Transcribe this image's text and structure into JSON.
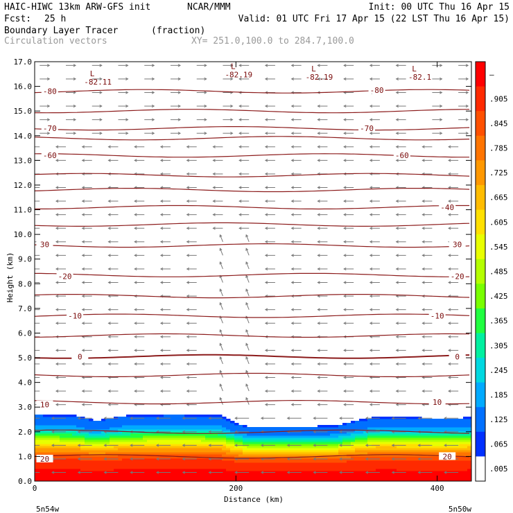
{
  "header": {
    "model": "HAIC-HIWC 13km ARW-GFS init",
    "org": "NCAR/MMM",
    "init": "Init: 00 UTC Thu 16 Apr 15",
    "fcst_label": "Fcst:",
    "fcst_value": "25 h",
    "valid": "Valid: 01 UTC Fri 17 Apr 15 (22 LST Thu 16 Apr 15)",
    "field": "Boundary Layer Tracer",
    "units": "(fraction)",
    "vectors": "Circulation vectors",
    "xy": "XY= 251.0,100.0 to 284.7,100.0"
  },
  "chart_data": {
    "type": "cross-section",
    "xlabel": "Distance (km)",
    "ylabel": "Height (km)",
    "xlim": [
      0,
      434
    ],
    "ylim": [
      0,
      17
    ],
    "x_ticks": [
      0,
      200,
      400
    ],
    "y_ticks": [
      0,
      1,
      2,
      3,
      4,
      5,
      6,
      7,
      8,
      9,
      10,
      11,
      12,
      13,
      14,
      15,
      16,
      17
    ],
    "x_end_labels": [
      "5n54w",
      "5n50w"
    ],
    "colorbar": {
      "labels": [
        "–",
        ".905",
        ".845",
        ".785",
        ".725",
        ".665",
        ".605",
        ".545",
        ".485",
        ".425",
        ".365",
        ".305",
        ".245",
        ".185",
        ".125",
        ".065",
        ".005"
      ],
      "colors": [
        "#ff0000",
        "#ff2a00",
        "#ff5000",
        "#ff7400",
        "#ff9800",
        "#ffbc00",
        "#ffe000",
        "#e8ff00",
        "#b4ff00",
        "#78ff00",
        "#20ff40",
        "#00f0a0",
        "#00d8e0",
        "#00aaff",
        "#0070ff",
        "#0030ff",
        "#ffffff"
      ]
    },
    "tracer_top_km": [
      [
        0,
        2.7
      ],
      [
        40,
        2.65
      ],
      [
        60,
        2.45
      ],
      [
        90,
        2.65
      ],
      [
        140,
        2.7
      ],
      [
        185,
        2.65
      ],
      [
        200,
        2.35
      ],
      [
        215,
        2.2
      ],
      [
        260,
        2.2
      ],
      [
        300,
        2.25
      ],
      [
        320,
        2.45
      ],
      [
        340,
        2.6
      ],
      [
        400,
        2.55
      ],
      [
        420,
        2.55
      ],
      [
        434,
        2.6
      ]
    ],
    "tracer_profile": [
      [
        0.0,
        0.98
      ],
      [
        0.7,
        0.96
      ],
      [
        1.0,
        0.86
      ],
      [
        1.3,
        0.7
      ],
      [
        1.6,
        0.5
      ],
      [
        1.8,
        0.34
      ],
      [
        2.0,
        0.2
      ],
      [
        2.2,
        0.1
      ],
      [
        2.4,
        0.05
      ],
      [
        2.6,
        0.03
      ]
    ],
    "temperature_contours": [
      {
        "label": "20",
        "h": 1.0,
        "label_pos": [
          [
            10,
            0.9
          ],
          [
            410,
            1.0
          ]
        ]
      },
      {
        "label": "",
        "h": 2.0
      },
      {
        "label": "10",
        "h": 3.2,
        "label_pos": [
          [
            10,
            3.1
          ],
          [
            400,
            3.2
          ]
        ]
      },
      {
        "label": "",
        "h": 4.3
      },
      {
        "label": "0",
        "h": 5.05,
        "label_pos": [
          [
            45,
            5.05
          ],
          [
            420,
            5.05
          ]
        ]
      },
      {
        "label": "",
        "h": 5.9
      },
      {
        "label": "-10",
        "h": 6.7,
        "label_pos": [
          [
            40,
            6.7
          ],
          [
            400,
            6.7
          ]
        ]
      },
      {
        "label": "",
        "h": 7.5
      },
      {
        "label": "-20",
        "h": 8.35,
        "label_pos": [
          [
            30,
            8.3
          ],
          [
            420,
            8.3
          ]
        ]
      },
      {
        "label": "30",
        "h": 9.55,
        "label_pos": [
          [
            10,
            9.6
          ],
          [
            420,
            9.6
          ]
        ]
      },
      {
        "label": "",
        "h": 10.4
      },
      {
        "label": "-40",
        "h": 11.1,
        "label_pos": [
          [
            410,
            11.1
          ]
        ]
      },
      {
        "label": "",
        "h": 11.8
      },
      {
        "label": "",
        "h": 12.4
      },
      {
        "label": "-60",
        "h": 13.2,
        "label_pos": [
          [
            15,
            13.2
          ],
          [
            365,
            13.2
          ]
        ]
      },
      {
        "label": "",
        "h": 13.9
      },
      {
        "label": "-70",
        "h": 14.3,
        "label_pos": [
          [
            15,
            14.3
          ],
          [
            330,
            14.3
          ]
        ]
      },
      {
        "label": "",
        "h": 15.0
      },
      {
        "label": "-80",
        "h": 15.8,
        "label_pos": [
          [
            15,
            15.8
          ],
          [
            340,
            15.85
          ]
        ]
      }
    ],
    "low_labels": [
      {
        "mark": "L",
        "value": "-82.11",
        "x": 60,
        "y": 16.35
      },
      {
        "mark": "L",
        "value": "-82.19",
        "x": 200,
        "y": 16.65
      },
      {
        "mark": "L",
        "value": "-82.19",
        "x": 280,
        "y": 16.55
      },
      {
        "mark": "L",
        "value": "-82.1",
        "x": 380,
        "y": 16.55
      }
    ]
  }
}
